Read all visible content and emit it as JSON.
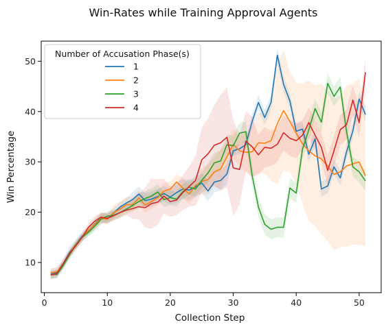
{
  "chart_data": {
    "type": "line",
    "title": "Win-Rates while Training Approval Agents",
    "xlabel": "Collection Step",
    "ylabel": "Win Percentage",
    "xlim": [
      -0.5,
      53.5
    ],
    "ylim": [
      4,
      54
    ],
    "xticks": [
      0,
      10,
      20,
      30,
      40,
      50
    ],
    "yticks": [
      10,
      20,
      30,
      40,
      50
    ],
    "grid": false,
    "legend": {
      "title": "Number of Accusation Phase(s)",
      "placement": "upper-left"
    },
    "x": [
      1,
      2,
      3,
      4,
      5,
      6,
      7,
      8,
      9,
      10,
      11,
      12,
      13,
      14,
      15,
      16,
      17,
      18,
      19,
      20,
      21,
      22,
      23,
      24,
      25,
      26,
      27,
      28,
      29,
      30,
      31,
      32,
      33,
      34,
      35,
      36,
      37,
      38,
      39,
      40,
      41,
      42,
      43,
      44,
      45,
      46,
      47,
      48,
      49,
      50,
      51
    ],
    "series": [
      {
        "name": "1",
        "color": "#1f77b4",
        "values": [
          7.8,
          8.0,
          9.8,
          12.0,
          13.6,
          15.2,
          16.3,
          17.6,
          18.9,
          18.7,
          19.8,
          21.0,
          21.8,
          22.5,
          23.6,
          22.3,
          22.6,
          23.1,
          23.7,
          23.0,
          23.9,
          24.6,
          24.4,
          25.0,
          25.8,
          24.2,
          26.0,
          26.3,
          27.6,
          32.2,
          32.6,
          33.4,
          38.0,
          41.8,
          38.8,
          41.8,
          51.2,
          45.4,
          42.1,
          36.1,
          36.5,
          31.5,
          34.6,
          24.6,
          25.2,
          29.0,
          26.8,
          32.0,
          36.2,
          42.5,
          39.4
        ],
        "band": [
          1.0,
          1.0,
          1.0,
          1.0,
          1.0,
          1.0,
          1.0,
          1.0,
          1.0,
          1.0,
          1.0,
          1.0,
          1.0,
          1.5,
          1.5,
          1.5,
          1.5,
          1.5,
          1.5,
          1.5,
          2.0,
          2.0,
          2.0,
          2.0,
          2.0,
          2.0,
          2.0,
          2.0,
          2.0,
          1.0,
          1.0,
          1.0,
          1.5,
          1.5,
          1.5,
          1.5,
          1.5,
          1.5,
          1.5,
          1.5,
          1.5,
          1.5,
          1.5,
          1.5,
          1.5,
          1.5,
          1.5,
          1.5,
          1.5,
          1.5,
          1.5
        ]
      },
      {
        "name": "2",
        "color": "#ff7f0e",
        "values": [
          7.9,
          8.2,
          9.6,
          11.8,
          13.6,
          15.0,
          16.4,
          17.5,
          18.8,
          18.6,
          19.9,
          20.6,
          21.5,
          21.5,
          22.8,
          21.4,
          22.1,
          22.9,
          24.2,
          24.6,
          26.0,
          24.8,
          23.6,
          25.3,
          26.1,
          26.5,
          28.0,
          28.6,
          31.0,
          33.5,
          32.2,
          31.9,
          32.0,
          33.8,
          33.7,
          34.2,
          37.6,
          40.2,
          38.0,
          35.7,
          33.6,
          32.2,
          31.2,
          30.6,
          29.2,
          27.5,
          28.0,
          29.2,
          29.6,
          30.0,
          27.2
        ],
        "band": [
          0.8,
          0.8,
          0.8,
          0.8,
          0.8,
          0.8,
          0.8,
          1.0,
          1.0,
          1.0,
          1.5,
          1.5,
          1.5,
          1.5,
          1.5,
          1.5,
          1.5,
          1.5,
          1.5,
          1.5,
          1.5,
          2.0,
          2.0,
          2.0,
          2.5,
          3.0,
          3.0,
          4.0,
          3.0,
          3.0,
          3.0,
          4.0,
          5.0,
          6.0,
          6.0,
          8.0,
          12.0,
          12.0,
          10.0,
          10.0,
          12.0,
          14.0,
          14.0,
          15.0,
          15.0,
          15.0,
          15.0,
          16.0,
          16.0,
          16.5,
          14.0
        ]
      },
      {
        "name": "3",
        "color": "#2ca02c",
        "values": [
          7.6,
          7.6,
          9.4,
          11.5,
          13.5,
          15.0,
          16.0,
          17.2,
          18.6,
          19.2,
          19.4,
          19.9,
          20.6,
          21.3,
          22.1,
          22.7,
          23.2,
          24.0,
          22.5,
          22.9,
          22.6,
          24.1,
          25.0,
          24.6,
          26.3,
          27.8,
          29.8,
          30.2,
          33.4,
          33.2,
          35.7,
          36.0,
          27.3,
          21.0,
          17.6,
          16.6,
          17.0,
          17.0,
          24.8,
          23.8,
          32.5,
          36.4,
          40.6,
          37.9,
          45.6,
          43.0,
          44.9,
          36.0,
          29.0,
          28.0,
          26.2
        ],
        "band": [
          0.8,
          0.8,
          0.8,
          0.8,
          0.8,
          0.8,
          0.8,
          1.0,
          1.0,
          1.0,
          1.0,
          1.0,
          1.0,
          1.0,
          1.5,
          1.5,
          1.5,
          1.5,
          1.5,
          1.5,
          1.5,
          1.5,
          1.5,
          1.5,
          1.5,
          2.0,
          2.0,
          2.0,
          2.0,
          2.0,
          2.0,
          2.0,
          2.0,
          2.0,
          2.0,
          2.0,
          2.0,
          2.0,
          2.0,
          2.0,
          2.0,
          2.0,
          2.0,
          2.0,
          2.0,
          2.0,
          2.0,
          2.0,
          2.0,
          2.0,
          2.0
        ]
      },
      {
        "name": "4",
        "color": "#d62728",
        "values": [
          7.5,
          7.8,
          9.8,
          11.8,
          13.3,
          15.0,
          17.0,
          18.2,
          19.0,
          18.8,
          19.3,
          19.9,
          20.4,
          20.7,
          21.1,
          20.9,
          21.7,
          22.0,
          23.2,
          22.1,
          22.4,
          23.9,
          25.1,
          26.3,
          30.4,
          31.6,
          33.3,
          33.8,
          34.9,
          28.8,
          28.5,
          34.1,
          33.0,
          31.4,
          32.9,
          32.7,
          33.5,
          35.8,
          34.7,
          34.2,
          35.3,
          37.8,
          35.3,
          32.9,
          28.3,
          32.2,
          36.4,
          37.4,
          42.3,
          37.8,
          47.8
        ],
        "band": [
          0.8,
          0.8,
          0.8,
          0.8,
          0.8,
          0.8,
          0.8,
          1.0,
          1.0,
          1.0,
          1.0,
          1.0,
          1.0,
          2.0,
          2.5,
          4.0,
          5.0,
          4.5,
          3.5,
          3.0,
          3.0,
          3.5,
          4.0,
          5.0,
          6.5,
          7.0,
          8.0,
          9.5,
          10.0,
          9.5,
          7.0,
          6.0,
          6.0,
          4.0,
          4.0,
          3.5,
          3.5,
          3.5,
          3.5,
          3.5,
          3.0,
          3.0,
          3.0,
          3.0,
          3.0,
          3.0,
          3.0,
          3.0,
          3.0,
          3.0,
          3.0
        ]
      }
    ]
  }
}
